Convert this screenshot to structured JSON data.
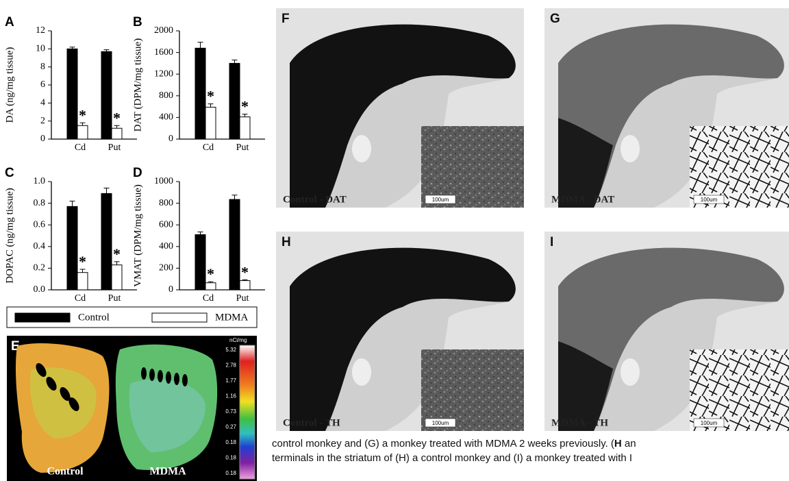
{
  "chart_data": [
    {
      "type": "bar",
      "title": "A",
      "y_label": "DA (ng/mg tissue)",
      "categories": [
        "Cd",
        "Put"
      ],
      "series": [
        {
          "color": "#000000",
          "values": [
            10.0,
            9.7
          ],
          "errors": [
            0.2,
            0.2
          ]
        },
        {
          "color": "#ffffff",
          "values": [
            1.5,
            1.2
          ],
          "errors": [
            0.3,
            0.3
          ]
        }
      ],
      "significance": [
        "*",
        "*"
      ],
      "ylim": [
        0,
        12
      ],
      "yticks": [
        0,
        2,
        4,
        6,
        8,
        10,
        12
      ]
    },
    {
      "type": "bar",
      "title": "B",
      "y_label": "DAT (DPM/mg tissue)",
      "categories": [
        "Cd",
        "Put"
      ],
      "series": [
        {
          "color": "#000000",
          "values": [
            1680,
            1400
          ],
          "errors": [
            110,
            60
          ]
        },
        {
          "color": "#ffffff",
          "values": [
            590,
            410
          ],
          "errors": [
            60,
            50
          ]
        }
      ],
      "significance": [
        "*",
        "*"
      ],
      "ylim": [
        0,
        2000
      ],
      "yticks": [
        0,
        400,
        800,
        1200,
        1600,
        2000
      ]
    },
    {
      "type": "bar",
      "title": "C",
      "y_label": "DOPAC (ng/mg tissue)",
      "categories": [
        "Cd",
        "Put"
      ],
      "series": [
        {
          "color": "#000000",
          "values": [
            0.77,
            0.89
          ],
          "errors": [
            0.05,
            0.05
          ]
        },
        {
          "color": "#ffffff",
          "values": [
            0.16,
            0.23
          ],
          "errors": [
            0.03,
            0.03
          ]
        }
      ],
      "significance": [
        "*",
        "*"
      ],
      "ylim": [
        0,
        1
      ],
      "yticks": [
        {
          "value": 0,
          "label": "0.0"
        },
        0.2,
        0.4,
        0.6,
        0.8,
        {
          "value": 1,
          "label": "1.0"
        }
      ]
    },
    {
      "type": "bar",
      "title": "D",
      "y_label": "VMAT (DPM/mg tissue)",
      "categories": [
        "Cd",
        "Put"
      ],
      "series": [
        {
          "color": "#000000",
          "values": [
            510,
            835
          ],
          "errors": [
            25,
            40
          ]
        },
        {
          "color": "#ffffff",
          "values": [
            65,
            85
          ],
          "errors": [
            10,
            8
          ]
        }
      ],
      "significance": [
        "*",
        "*"
      ],
      "ylim": [
        0,
        1000
      ],
      "yticks": [
        0,
        200,
        400,
        600,
        800,
        1000
      ]
    }
  ],
  "legend": [
    {
      "name": "Control",
      "color": "#000000"
    },
    {
      "name": "MDMA",
      "color": "#ffffff"
    }
  ],
  "panel_e": {
    "letter": "E",
    "labels": [
      "Control",
      "MDMA"
    ],
    "scale_title": "nCi/mg",
    "scale_labels": [
      "5.32",
      "2.78",
      "1.77",
      "1.16",
      "0.73",
      "0.27",
      "0.18",
      "0.18",
      "0.18"
    ]
  },
  "panels": [
    {
      "letter": "F",
      "label": "Control - DAT",
      "scale_bar": "100um"
    },
    {
      "letter": "G",
      "label": "MDMA - DAT",
      "scale_bar": "100um"
    },
    {
      "letter": "H",
      "label": "Control - TH",
      "scale_bar": "100um"
    },
    {
      "letter": "I",
      "label": "MDMA - TH",
      "scale_bar": "100um"
    }
  ],
  "caption": [
    [
      "control monkey and (G) a monkey treated with MDMA 2 weeks previously. (",
      "H",
      " an"
    ],
    [
      "terminals in the striatum of (H) a control monkey and (I) a monkey treated with I"
    ]
  ]
}
